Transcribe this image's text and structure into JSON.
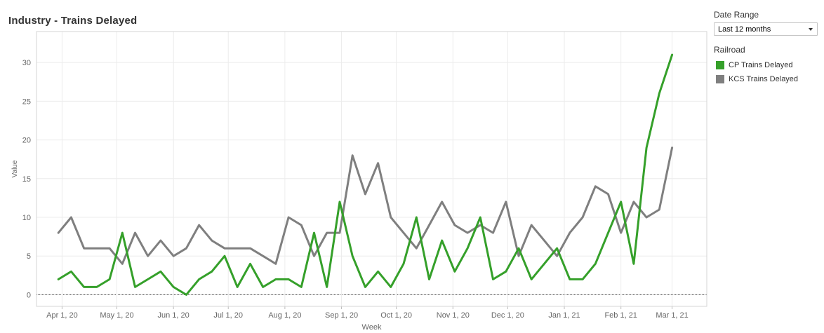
{
  "title": "Industry - Trains Delayed",
  "filter": {
    "label": "Date Range",
    "value": "Last 12 months"
  },
  "legend": {
    "title": "Railroad",
    "items": [
      {
        "name": "CP Trains Delayed",
        "color": "#35a02a"
      },
      {
        "name": "KCS Trains Delayed",
        "color": "#7f7f7f"
      }
    ]
  },
  "chart_data": {
    "type": "line",
    "xlabel": "Week",
    "ylabel": "Value",
    "ylim": [
      -1.5,
      34
    ],
    "yticks": [
      0,
      5,
      10,
      15,
      20,
      25,
      30
    ],
    "xlim": [
      "2020-03-18",
      "2021-03-20"
    ],
    "xticks": [
      {
        "date": "2020-04-01",
        "label": "Apr 1, 20"
      },
      {
        "date": "2020-05-01",
        "label": "May 1, 20"
      },
      {
        "date": "2020-06-01",
        "label": "Jun 1, 20"
      },
      {
        "date": "2020-07-01",
        "label": "Jul 1, 20"
      },
      {
        "date": "2020-08-01",
        "label": "Aug 1, 20"
      },
      {
        "date": "2020-09-01",
        "label": "Sep 1, 20"
      },
      {
        "date": "2020-10-01",
        "label": "Oct 1, 20"
      },
      {
        "date": "2020-11-01",
        "label": "Nov 1, 20"
      },
      {
        "date": "2020-12-01",
        "label": "Dec 1, 20"
      },
      {
        "date": "2021-01-01",
        "label": "Jan 1, 21"
      },
      {
        "date": "2021-02-01",
        "label": "Feb 1, 21"
      },
      {
        "date": "2021-03-01",
        "label": "Mar 1, 21"
      }
    ],
    "x": [
      "2020-03-30",
      "2020-04-06",
      "2020-04-13",
      "2020-04-20",
      "2020-04-27",
      "2020-05-04",
      "2020-05-11",
      "2020-05-18",
      "2020-05-25",
      "2020-06-01",
      "2020-06-08",
      "2020-06-15",
      "2020-06-22",
      "2020-06-29",
      "2020-07-06",
      "2020-07-13",
      "2020-07-20",
      "2020-07-27",
      "2020-08-03",
      "2020-08-10",
      "2020-08-17",
      "2020-08-24",
      "2020-08-31",
      "2020-09-07",
      "2020-09-14",
      "2020-09-21",
      "2020-09-28",
      "2020-10-05",
      "2020-10-12",
      "2020-10-19",
      "2020-10-26",
      "2020-11-02",
      "2020-11-09",
      "2020-11-16",
      "2020-11-23",
      "2020-11-30",
      "2020-12-07",
      "2020-12-14",
      "2020-12-21",
      "2020-12-28",
      "2021-01-04",
      "2021-01-11",
      "2021-01-18",
      "2021-01-25",
      "2021-02-01",
      "2021-02-08",
      "2021-02-15",
      "2021-02-22",
      "2021-03-01"
    ],
    "series": [
      {
        "name": "CP Trains Delayed",
        "color": "#35a02a",
        "values": [
          2,
          3,
          1,
          1,
          2,
          8,
          1,
          2,
          3,
          1,
          0,
          2,
          3,
          5,
          1,
          4,
          1,
          2,
          2,
          1,
          8,
          1,
          12,
          5,
          1,
          3,
          1,
          4,
          10,
          2,
          7,
          3,
          6,
          10,
          2,
          3,
          6,
          2,
          4,
          6,
          2,
          2,
          4,
          8,
          12,
          4,
          19,
          26,
          31
        ]
      },
      {
        "name": "KCS Trains Delayed",
        "color": "#7f7f7f",
        "values": [
          8,
          10,
          6,
          6,
          6,
          4,
          8,
          5,
          7,
          5,
          6,
          9,
          7,
          6,
          6,
          6,
          5,
          4,
          10,
          9,
          5,
          8,
          8,
          18,
          13,
          17,
          10,
          8,
          6,
          9,
          12,
          9,
          8,
          9,
          8,
          12,
          5,
          9,
          7,
          5,
          8,
          10,
          14,
          13,
          8,
          12,
          10,
          11,
          19
        ]
      }
    ]
  }
}
